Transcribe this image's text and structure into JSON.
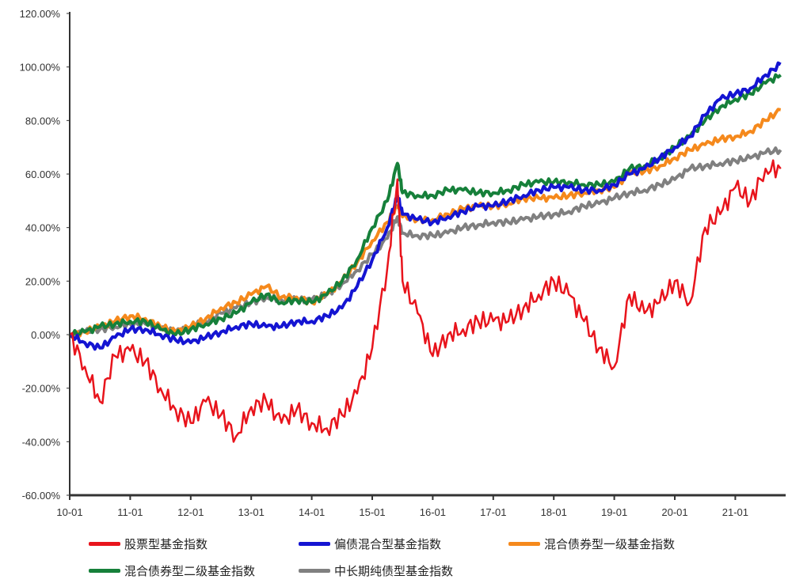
{
  "chart_data": {
    "type": "line",
    "title": "",
    "xlabel": "",
    "ylabel": "",
    "ylim": [
      -60,
      120
    ],
    "y_ticks": [
      "120.00%",
      "100.00%",
      "80.00%",
      "60.00%",
      "40.00%",
      "20.00%",
      "0.00%",
      "-20.00%",
      "-40.00%",
      "-60.00%"
    ],
    "x_ticks": [
      "10-01",
      "11-01",
      "12-01",
      "13-01",
      "14-01",
      "15-01",
      "16-01",
      "17-01",
      "18-01",
      "19-01",
      "20-01",
      "21-01"
    ],
    "grid": false,
    "legend_position": "bottom",
    "x": [
      "2010-01",
      "2010-04",
      "2010-07",
      "2010-10",
      "2011-01",
      "2011-04",
      "2011-07",
      "2011-10",
      "2012-01",
      "2012-04",
      "2012-07",
      "2012-10",
      "2013-01",
      "2013-04",
      "2013-07",
      "2013-10",
      "2014-01",
      "2014-04",
      "2014-07",
      "2014-10",
      "2015-01",
      "2015-04",
      "2015-06",
      "2015-07",
      "2015-10",
      "2016-01",
      "2016-04",
      "2016-07",
      "2016-10",
      "2017-01",
      "2017-04",
      "2017-07",
      "2017-10",
      "2018-01",
      "2018-04",
      "2018-07",
      "2018-10",
      "2019-01",
      "2019-04",
      "2019-07",
      "2019-10",
      "2020-01",
      "2020-04",
      "2020-07",
      "2020-10",
      "2021-01",
      "2021-04",
      "2021-07",
      "2021-10"
    ],
    "series": [
      {
        "name": "股票型基金指数",
        "color": "#e8141c",
        "values": [
          0,
          -12,
          -25,
          -8,
          -6,
          -10,
          -20,
          -28,
          -33,
          -25,
          -30,
          -38,
          -27,
          -25,
          -33,
          -28,
          -33,
          -35,
          -30,
          -22,
          -5,
          25,
          58,
          20,
          8,
          -8,
          0,
          2,
          5,
          5,
          5,
          10,
          15,
          20,
          15,
          5,
          -5,
          -12,
          15,
          8,
          12,
          20,
          12,
          40,
          45,
          55,
          50,
          62,
          62
        ]
      },
      {
        "name": "偏债混合型基金指数",
        "color": "#1414d2",
        "values": [
          0,
          -3,
          -5,
          -1,
          2,
          2,
          0,
          -2,
          -3,
          -1,
          1,
          3,
          4,
          3,
          3,
          5,
          5,
          7,
          10,
          18,
          28,
          40,
          52,
          45,
          43,
          42,
          44,
          46,
          48,
          48,
          50,
          52,
          54,
          55,
          55,
          54,
          54,
          56,
          60,
          62,
          66,
          70,
          74,
          82,
          88,
          90,
          92,
          97,
          101
        ]
      },
      {
        "name": "混合债券型一级基金指数",
        "color": "#f5891c",
        "values": [
          0,
          1,
          3,
          5,
          7,
          6,
          3,
          1,
          3,
          6,
          10,
          12,
          15,
          18,
          14,
          14,
          12,
          15,
          20,
          27,
          35,
          42,
          48,
          44,
          43,
          43,
          45,
          47,
          48,
          48,
          49,
          51,
          51,
          51,
          52,
          53,
          54,
          55,
          60,
          61,
          63,
          66,
          69,
          71,
          73,
          74,
          76,
          80,
          84
        ]
      },
      {
        "name": "混合债券型二级基金指数",
        "color": "#16803a",
        "values": [
          0,
          1,
          3,
          4,
          5,
          5,
          2,
          0,
          2,
          4,
          6,
          8,
          12,
          15,
          12,
          13,
          12,
          15,
          20,
          28,
          40,
          50,
          64,
          53,
          52,
          52,
          54,
          54,
          53,
          53,
          54,
          56,
          57,
          57,
          57,
          56,
          56,
          57,
          62,
          63,
          66,
          70,
          74,
          80,
          85,
          88,
          90,
          94,
          97
        ]
      },
      {
        "name": "中长期纯债型基金指数",
        "color": "#808080",
        "values": [
          0,
          1,
          2,
          3,
          4,
          4,
          2,
          1,
          3,
          5,
          8,
          10,
          12,
          14,
          13,
          13,
          13,
          15,
          19,
          24,
          30,
          36,
          44,
          38,
          37,
          37,
          38,
          40,
          41,
          42,
          42,
          43,
          44,
          45,
          46,
          48,
          49,
          51,
          53,
          54,
          56,
          58,
          62,
          63,
          64,
          65,
          66,
          68,
          69
        ]
      }
    ]
  }
}
